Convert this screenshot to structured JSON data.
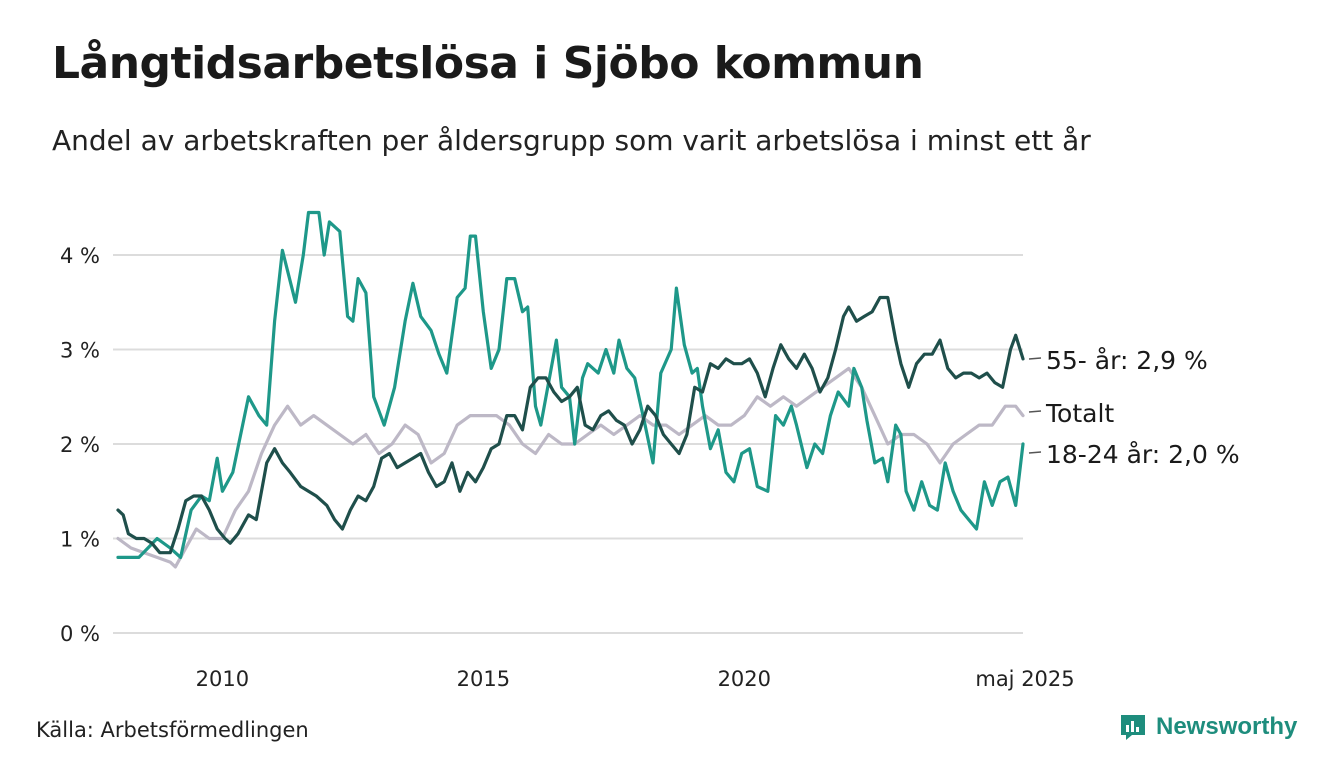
{
  "title": "Långtidsarbetslösa i Sjöbo kommun",
  "subtitle": "Andel av arbetskraften per åldersgrupp som varit arbetslösa i minst ett år",
  "source": "Källa: Arbetsförmedlingen",
  "brand": {
    "name": "Newsworthy",
    "icon": "bar-chart-logo-icon",
    "color": "#1e8d7d"
  },
  "chart_data": {
    "type": "line",
    "title": "Långtidsarbetslösa i Sjöbo kommun",
    "xlabel": "",
    "ylabel": "",
    "xlim": [
      2008.0,
      2025.34
    ],
    "ylim": [
      0,
      4.5
    ],
    "grid": true,
    "y_ticks": [
      0,
      1,
      2,
      3,
      4
    ],
    "y_tick_labels": [
      "0 %",
      "1 %",
      "2 %",
      "3 %",
      "4 %"
    ],
    "x_ticks": [
      2010,
      2015,
      2020,
      2025.34
    ],
    "x_tick_labels": [
      "2010",
      "2015",
      "2020",
      "maj 2025"
    ],
    "legend": "direct labels at line ends",
    "series": [
      {
        "name": "Totalt",
        "label": "Totalt",
        "color": "#bdb8c6",
        "points": [
          [
            2008.0,
            1.0
          ],
          [
            2008.25,
            0.9
          ],
          [
            2008.5,
            0.85
          ],
          [
            2008.75,
            0.8
          ],
          [
            2009.0,
            0.75
          ],
          [
            2009.1,
            0.7
          ],
          [
            2009.25,
            0.85
          ],
          [
            2009.5,
            1.1
          ],
          [
            2009.75,
            1.0
          ],
          [
            2010.0,
            1.0
          ],
          [
            2010.25,
            1.3
          ],
          [
            2010.5,
            1.5
          ],
          [
            2010.75,
            1.9
          ],
          [
            2011.0,
            2.2
          ],
          [
            2011.25,
            2.4
          ],
          [
            2011.5,
            2.2
          ],
          [
            2011.75,
            2.3
          ],
          [
            2012.0,
            2.2
          ],
          [
            2012.25,
            2.1
          ],
          [
            2012.5,
            2.0
          ],
          [
            2012.75,
            2.1
          ],
          [
            2013.0,
            1.9
          ],
          [
            2013.25,
            2.0
          ],
          [
            2013.5,
            2.2
          ],
          [
            2013.75,
            2.1
          ],
          [
            2014.0,
            1.8
          ],
          [
            2014.25,
            1.9
          ],
          [
            2014.5,
            2.2
          ],
          [
            2014.75,
            2.3
          ],
          [
            2015.0,
            2.3
          ],
          [
            2015.25,
            2.3
          ],
          [
            2015.5,
            2.2
          ],
          [
            2015.75,
            2.0
          ],
          [
            2016.0,
            1.9
          ],
          [
            2016.25,
            2.1
          ],
          [
            2016.5,
            2.0
          ],
          [
            2016.75,
            2.0
          ],
          [
            2017.0,
            2.1
          ],
          [
            2017.25,
            2.2
          ],
          [
            2017.5,
            2.1
          ],
          [
            2017.75,
            2.2
          ],
          [
            2018.0,
            2.3
          ],
          [
            2018.25,
            2.2
          ],
          [
            2018.5,
            2.2
          ],
          [
            2018.75,
            2.1
          ],
          [
            2019.0,
            2.2
          ],
          [
            2019.25,
            2.3
          ],
          [
            2019.5,
            2.2
          ],
          [
            2019.75,
            2.2
          ],
          [
            2020.0,
            2.3
          ],
          [
            2020.25,
            2.5
          ],
          [
            2020.5,
            2.4
          ],
          [
            2020.75,
            2.5
          ],
          [
            2021.0,
            2.4
          ],
          [
            2021.25,
            2.5
          ],
          [
            2021.5,
            2.6
          ],
          [
            2021.75,
            2.7
          ],
          [
            2022.0,
            2.8
          ],
          [
            2022.25,
            2.6
          ],
          [
            2022.5,
            2.3
          ],
          [
            2022.75,
            2.0
          ],
          [
            2023.0,
            2.1
          ],
          [
            2023.25,
            2.1
          ],
          [
            2023.5,
            2.0
          ],
          [
            2023.75,
            1.8
          ],
          [
            2024.0,
            2.0
          ],
          [
            2024.25,
            2.1
          ],
          [
            2024.5,
            2.2
          ],
          [
            2024.75,
            2.2
          ],
          [
            2025.0,
            2.4
          ],
          [
            2025.2,
            2.4
          ],
          [
            2025.34,
            2.3
          ]
        ]
      },
      {
        "name": "18-24 år",
        "label": "18-24 år: 2,0 %",
        "color": "#1e9889",
        "points": [
          [
            2008.0,
            0.8
          ],
          [
            2008.4,
            0.8
          ],
          [
            2008.75,
            1.0
          ],
          [
            2009.0,
            0.9
          ],
          [
            2009.2,
            0.8
          ],
          [
            2009.4,
            1.3
          ],
          [
            2009.6,
            1.45
          ],
          [
            2009.75,
            1.4
          ],
          [
            2009.9,
            1.85
          ],
          [
            2010.0,
            1.5
          ],
          [
            2010.2,
            1.7
          ],
          [
            2010.5,
            2.5
          ],
          [
            2010.7,
            2.3
          ],
          [
            2010.85,
            2.2
          ],
          [
            2011.0,
            3.3
          ],
          [
            2011.15,
            4.05
          ],
          [
            2011.4,
            3.5
          ],
          [
            2011.55,
            4.0
          ],
          [
            2011.65,
            4.45
          ],
          [
            2011.85,
            4.45
          ],
          [
            2011.95,
            4.0
          ],
          [
            2012.05,
            4.35
          ],
          [
            2012.25,
            4.25
          ],
          [
            2012.4,
            3.35
          ],
          [
            2012.5,
            3.3
          ],
          [
            2012.6,
            3.75
          ],
          [
            2012.75,
            3.6
          ],
          [
            2012.9,
            2.5
          ],
          [
            2013.1,
            2.2
          ],
          [
            2013.3,
            2.6
          ],
          [
            2013.5,
            3.3
          ],
          [
            2013.65,
            3.7
          ],
          [
            2013.8,
            3.35
          ],
          [
            2014.0,
            3.2
          ],
          [
            2014.15,
            2.95
          ],
          [
            2014.3,
            2.75
          ],
          [
            2014.5,
            3.55
          ],
          [
            2014.65,
            3.65
          ],
          [
            2014.75,
            4.2
          ],
          [
            2014.85,
            4.2
          ],
          [
            2015.0,
            3.4
          ],
          [
            2015.15,
            2.8
          ],
          [
            2015.3,
            3.0
          ],
          [
            2015.45,
            3.75
          ],
          [
            2015.6,
            3.75
          ],
          [
            2015.75,
            3.4
          ],
          [
            2015.85,
            3.45
          ],
          [
            2016.0,
            2.4
          ],
          [
            2016.1,
            2.2
          ],
          [
            2016.25,
            2.65
          ],
          [
            2016.4,
            3.1
          ],
          [
            2016.5,
            2.6
          ],
          [
            2016.65,
            2.5
          ],
          [
            2016.75,
            2.0
          ],
          [
            2016.9,
            2.7
          ],
          [
            2017.0,
            2.85
          ],
          [
            2017.2,
            2.75
          ],
          [
            2017.35,
            3.0
          ],
          [
            2017.5,
            2.75
          ],
          [
            2017.6,
            3.1
          ],
          [
            2017.75,
            2.8
          ],
          [
            2017.9,
            2.7
          ],
          [
            2018.1,
            2.2
          ],
          [
            2018.25,
            1.8
          ],
          [
            2018.4,
            2.75
          ],
          [
            2018.6,
            3.0
          ],
          [
            2018.7,
            3.65
          ],
          [
            2018.85,
            3.05
          ],
          [
            2019.0,
            2.75
          ],
          [
            2019.1,
            2.8
          ],
          [
            2019.2,
            2.4
          ],
          [
            2019.35,
            1.95
          ],
          [
            2019.5,
            2.15
          ],
          [
            2019.65,
            1.7
          ],
          [
            2019.8,
            1.6
          ],
          [
            2019.95,
            1.9
          ],
          [
            2020.1,
            1.95
          ],
          [
            2020.25,
            1.55
          ],
          [
            2020.45,
            1.5
          ],
          [
            2020.6,
            2.3
          ],
          [
            2020.75,
            2.2
          ],
          [
            2020.9,
            2.4
          ],
          [
            2021.0,
            2.2
          ],
          [
            2021.2,
            1.75
          ],
          [
            2021.35,
            2.0
          ],
          [
            2021.5,
            1.9
          ],
          [
            2021.65,
            2.3
          ],
          [
            2021.8,
            2.55
          ],
          [
            2022.0,
            2.4
          ],
          [
            2022.1,
            2.8
          ],
          [
            2022.25,
            2.6
          ],
          [
            2022.35,
            2.25
          ],
          [
            2022.5,
            1.8
          ],
          [
            2022.65,
            1.85
          ],
          [
            2022.75,
            1.6
          ],
          [
            2022.9,
            2.2
          ],
          [
            2023.0,
            2.1
          ],
          [
            2023.1,
            1.5
          ],
          [
            2023.25,
            1.3
          ],
          [
            2023.4,
            1.6
          ],
          [
            2023.55,
            1.35
          ],
          [
            2023.7,
            1.3
          ],
          [
            2023.85,
            1.8
          ],
          [
            2024.0,
            1.5
          ],
          [
            2024.15,
            1.3
          ],
          [
            2024.3,
            1.2
          ],
          [
            2024.45,
            1.1
          ],
          [
            2024.6,
            1.6
          ],
          [
            2024.75,
            1.35
          ],
          [
            2024.9,
            1.6
          ],
          [
            2025.05,
            1.65
          ],
          [
            2025.2,
            1.35
          ],
          [
            2025.34,
            2.0
          ]
        ]
      },
      {
        "name": "55- år",
        "label": "55- år: 2,9 %",
        "color": "#1f4f4b",
        "points": [
          [
            2008.0,
            1.3
          ],
          [
            2008.1,
            1.25
          ],
          [
            2008.2,
            1.05
          ],
          [
            2008.35,
            1.0
          ],
          [
            2008.5,
            1.0
          ],
          [
            2008.65,
            0.95
          ],
          [
            2008.8,
            0.85
          ],
          [
            2009.0,
            0.85
          ],
          [
            2009.15,
            1.1
          ],
          [
            2009.3,
            1.4
          ],
          [
            2009.45,
            1.45
          ],
          [
            2009.6,
            1.45
          ],
          [
            2009.75,
            1.3
          ],
          [
            2009.9,
            1.1
          ],
          [
            2010.05,
            1.0
          ],
          [
            2010.15,
            0.95
          ],
          [
            2010.3,
            1.05
          ],
          [
            2010.5,
            1.25
          ],
          [
            2010.65,
            1.2
          ],
          [
            2010.85,
            1.8
          ],
          [
            2011.0,
            1.95
          ],
          [
            2011.15,
            1.8
          ],
          [
            2011.3,
            1.7
          ],
          [
            2011.5,
            1.55
          ],
          [
            2011.65,
            1.5
          ],
          [
            2011.8,
            1.45
          ],
          [
            2012.0,
            1.35
          ],
          [
            2012.15,
            1.2
          ],
          [
            2012.3,
            1.1
          ],
          [
            2012.45,
            1.3
          ],
          [
            2012.6,
            1.45
          ],
          [
            2012.75,
            1.4
          ],
          [
            2012.9,
            1.55
          ],
          [
            2013.05,
            1.85
          ],
          [
            2013.2,
            1.9
          ],
          [
            2013.35,
            1.75
          ],
          [
            2013.5,
            1.8
          ],
          [
            2013.65,
            1.85
          ],
          [
            2013.8,
            1.9
          ],
          [
            2013.95,
            1.7
          ],
          [
            2014.1,
            1.55
          ],
          [
            2014.25,
            1.6
          ],
          [
            2014.4,
            1.8
          ],
          [
            2014.55,
            1.5
          ],
          [
            2014.7,
            1.7
          ],
          [
            2014.85,
            1.6
          ],
          [
            2015.0,
            1.75
          ],
          [
            2015.15,
            1.95
          ],
          [
            2015.3,
            2.0
          ],
          [
            2015.45,
            2.3
          ],
          [
            2015.6,
            2.3
          ],
          [
            2015.75,
            2.15
          ],
          [
            2015.9,
            2.6
          ],
          [
            2016.05,
            2.7
          ],
          [
            2016.2,
            2.7
          ],
          [
            2016.35,
            2.55
          ],
          [
            2016.5,
            2.45
          ],
          [
            2016.65,
            2.5
          ],
          [
            2016.8,
            2.6
          ],
          [
            2016.95,
            2.2
          ],
          [
            2017.1,
            2.15
          ],
          [
            2017.25,
            2.3
          ],
          [
            2017.4,
            2.35
          ],
          [
            2017.55,
            2.25
          ],
          [
            2017.7,
            2.2
          ],
          [
            2017.85,
            2.0
          ],
          [
            2018.0,
            2.15
          ],
          [
            2018.15,
            2.4
          ],
          [
            2018.3,
            2.3
          ],
          [
            2018.45,
            2.1
          ],
          [
            2018.6,
            2.0
          ],
          [
            2018.75,
            1.9
          ],
          [
            2018.9,
            2.1
          ],
          [
            2019.05,
            2.6
          ],
          [
            2019.2,
            2.55
          ],
          [
            2019.35,
            2.85
          ],
          [
            2019.5,
            2.8
          ],
          [
            2019.65,
            2.9
          ],
          [
            2019.8,
            2.85
          ],
          [
            2019.95,
            2.85
          ],
          [
            2020.1,
            2.9
          ],
          [
            2020.25,
            2.75
          ],
          [
            2020.4,
            2.5
          ],
          [
            2020.55,
            2.8
          ],
          [
            2020.7,
            3.05
          ],
          [
            2020.85,
            2.9
          ],
          [
            2021.0,
            2.8
          ],
          [
            2021.15,
            2.95
          ],
          [
            2021.3,
            2.8
          ],
          [
            2021.45,
            2.55
          ],
          [
            2021.6,
            2.7
          ],
          [
            2021.75,
            3.0
          ],
          [
            2021.9,
            3.35
          ],
          [
            2022.0,
            3.45
          ],
          [
            2022.15,
            3.3
          ],
          [
            2022.3,
            3.35
          ],
          [
            2022.45,
            3.4
          ],
          [
            2022.6,
            3.55
          ],
          [
            2022.75,
            3.55
          ],
          [
            2022.9,
            3.1
          ],
          [
            2023.0,
            2.85
          ],
          [
            2023.15,
            2.6
          ],
          [
            2023.3,
            2.85
          ],
          [
            2023.45,
            2.95
          ],
          [
            2023.6,
            2.95
          ],
          [
            2023.75,
            3.1
          ],
          [
            2023.9,
            2.8
          ],
          [
            2024.05,
            2.7
          ],
          [
            2024.2,
            2.75
          ],
          [
            2024.35,
            2.75
          ],
          [
            2024.5,
            2.7
          ],
          [
            2024.65,
            2.75
          ],
          [
            2024.8,
            2.65
          ],
          [
            2024.95,
            2.6
          ],
          [
            2025.1,
            3.0
          ],
          [
            2025.2,
            3.15
          ],
          [
            2025.34,
            2.9
          ]
        ]
      }
    ]
  }
}
